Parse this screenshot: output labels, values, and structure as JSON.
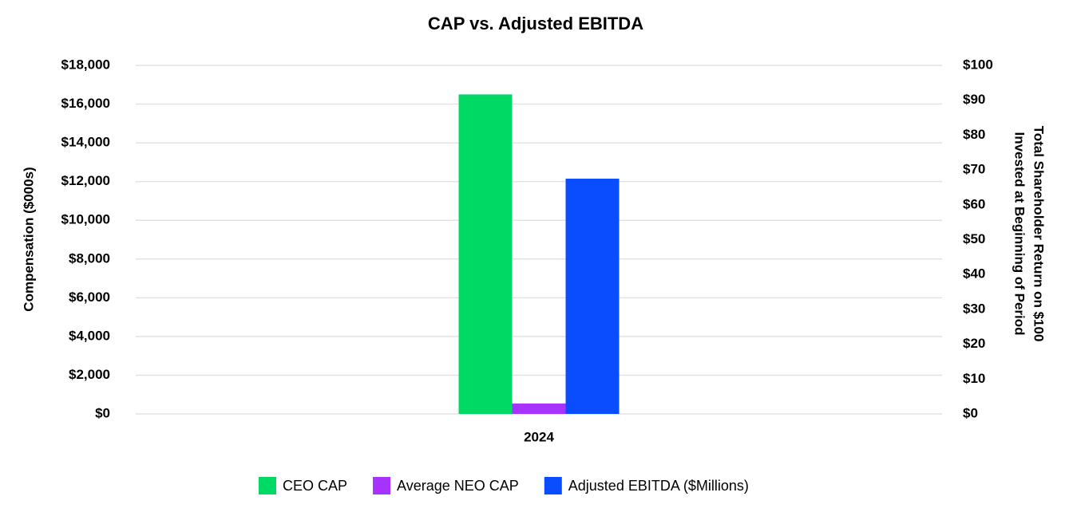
{
  "chart_data": {
    "type": "bar",
    "title": "CAP vs. Adjusted EBITDA",
    "categories": [
      "2024"
    ],
    "series": [
      {
        "name": "CEO CAP",
        "color": "#00d964",
        "values": [
          16500
        ]
      },
      {
        "name": "Average NEO CAP",
        "color": "#a633ff",
        "values": [
          540
        ]
      },
      {
        "name": "Adjusted EBITDA ($Millions)",
        "color": "#0a4dff",
        "values": [
          12150
        ]
      }
    ],
    "ylabel": "Compensation ($000s)",
    "y2label": [
      "Total Shareholder Return on $100",
      "Invested at Beginning of Period"
    ],
    "ylim": [
      0,
      18000
    ],
    "yticks": [
      {
        "value": 0,
        "label": "$0"
      },
      {
        "value": 2000,
        "label": "$2,000"
      },
      {
        "value": 4000,
        "label": "$4,000"
      },
      {
        "value": 6000,
        "label": "$6,000"
      },
      {
        "value": 8000,
        "label": "$8,000"
      },
      {
        "value": 10000,
        "label": "$10,000"
      },
      {
        "value": 12000,
        "label": "$12,000"
      },
      {
        "value": 14000,
        "label": "$14,000"
      },
      {
        "value": 16000,
        "label": "$16,000"
      },
      {
        "value": 18000,
        "label": "$18,000"
      }
    ],
    "y2lim": [
      0,
      100
    ],
    "y2ticks": [
      {
        "value": 0,
        "label": "$0"
      },
      {
        "value": 10,
        "label": "$10"
      },
      {
        "value": 20,
        "label": "$20"
      },
      {
        "value": 30,
        "label": "$30"
      },
      {
        "value": 40,
        "label": "$40"
      },
      {
        "value": 50,
        "label": "$50"
      },
      {
        "value": 60,
        "label": "$60"
      },
      {
        "value": 70,
        "label": "$70"
      },
      {
        "value": 80,
        "label": "$80"
      },
      {
        "value": 90,
        "label": "$90"
      },
      {
        "value": 100,
        "label": "$100"
      }
    ],
    "grid": true,
    "legend": "bottom"
  }
}
